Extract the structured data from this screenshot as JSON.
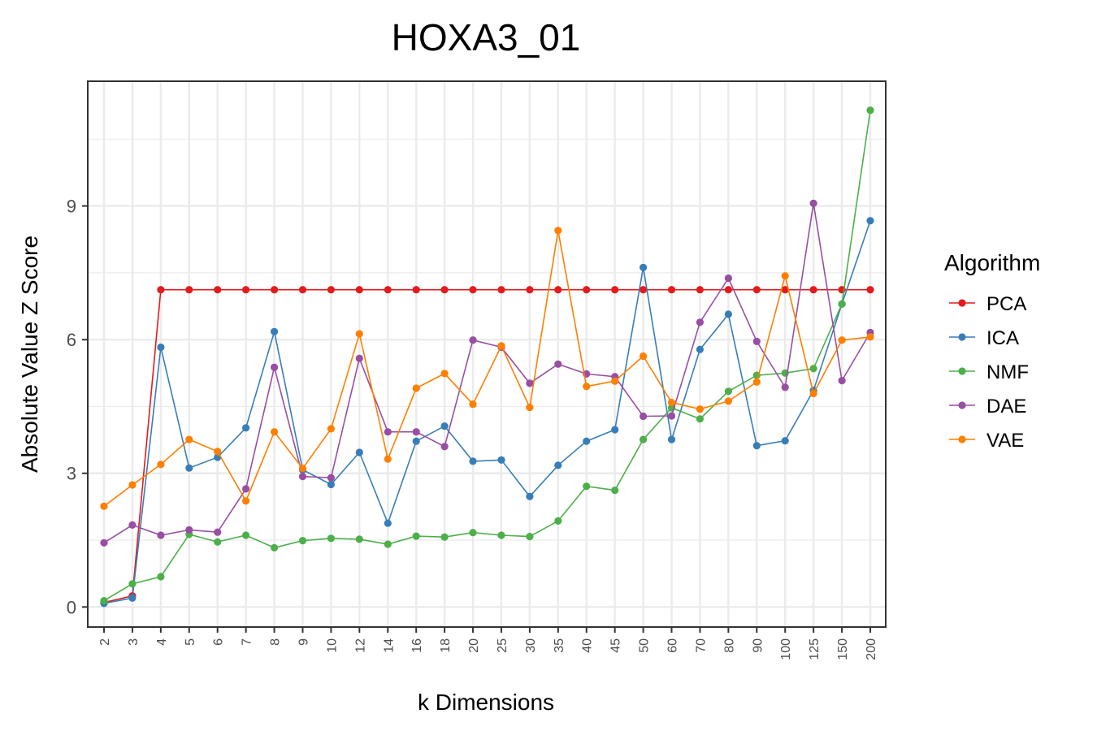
{
  "chart_data": {
    "type": "line",
    "title": "HOXA3_01",
    "xlabel": "k Dimensions",
    "ylabel": "Absolute Value Z Score",
    "categories": [
      "2",
      "3",
      "4",
      "5",
      "6",
      "7",
      "8",
      "9",
      "10",
      "12",
      "14",
      "16",
      "18",
      "20",
      "25",
      "30",
      "35",
      "40",
      "45",
      "50",
      "60",
      "70",
      "80",
      "90",
      "100",
      "125",
      "150",
      "200"
    ],
    "ylim": [
      -0.45,
      11.8
    ],
    "yticks": [
      "0",
      "3",
      "6",
      "9"
    ],
    "grid": true,
    "legend_title": "Algorithm",
    "legend_position": "right",
    "series": [
      {
        "name": "PCA",
        "color": "#e41a1c",
        "values": [
          0.1,
          0.25,
          7.12,
          7.12,
          7.12,
          7.12,
          7.12,
          7.12,
          7.12,
          7.12,
          7.12,
          7.12,
          7.12,
          7.12,
          7.12,
          7.12,
          7.12,
          7.12,
          7.12,
          7.12,
          7.12,
          7.12,
          7.12,
          7.12,
          7.12,
          7.12,
          7.12,
          7.12
        ]
      },
      {
        "name": "ICA",
        "color": "#377eb8",
        "values": [
          0.08,
          0.2,
          5.83,
          3.12,
          3.36,
          4.02,
          6.18,
          3.08,
          2.75,
          3.47,
          1.88,
          3.72,
          4.06,
          3.27,
          3.3,
          2.48,
          3.18,
          3.72,
          3.98,
          7.62,
          3.76,
          5.78,
          6.57,
          3.62,
          3.73,
          4.86,
          6.8,
          8.67
        ]
      },
      {
        "name": "NMF",
        "color": "#4daf4a",
        "values": [
          0.14,
          0.52,
          0.68,
          1.63,
          1.46,
          1.61,
          1.33,
          1.49,
          1.54,
          1.52,
          1.41,
          1.59,
          1.57,
          1.67,
          1.61,
          1.58,
          1.93,
          2.71,
          2.62,
          3.76,
          4.47,
          4.22,
          4.84,
          5.2,
          5.25,
          5.35,
          6.8,
          11.15
        ]
      },
      {
        "name": "DAE",
        "color": "#984ea3",
        "values": [
          1.44,
          1.84,
          1.61,
          1.73,
          1.68,
          2.65,
          5.38,
          2.93,
          2.9,
          5.58,
          3.93,
          3.93,
          3.6,
          5.99,
          5.83,
          5.02,
          5.45,
          5.23,
          5.17,
          4.28,
          4.29,
          6.39,
          7.38,
          5.96,
          4.93,
          9.06,
          5.08,
          6.16
        ]
      },
      {
        "name": "VAE",
        "color": "#ff7f00",
        "values": [
          2.26,
          2.74,
          3.2,
          3.76,
          3.49,
          2.38,
          3.93,
          3.11,
          4.0,
          6.13,
          3.32,
          4.91,
          5.24,
          4.55,
          5.86,
          4.48,
          8.45,
          4.95,
          5.07,
          5.63,
          4.59,
          4.44,
          4.62,
          5.05,
          7.43,
          4.79,
          5.99,
          6.06
        ]
      }
    ]
  }
}
